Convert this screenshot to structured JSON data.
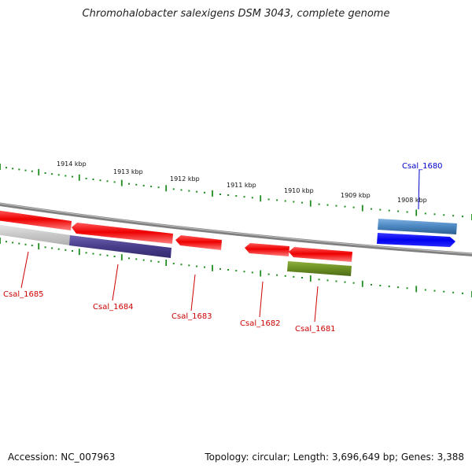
{
  "title": "Chromohalobacter salexigens DSM 3043, complete genome",
  "accession": "Accession: NC_007963",
  "topology": "Topology: circular; Length: 3,696,649 bp; Genes: 3,388",
  "kbp_labels": [
    "1914 kbp",
    "1913 kbp",
    "1912 kbp",
    "1911 kbp",
    "1910 kbp",
    "1909 kbp",
    "1908 kbp"
  ],
  "genes": [
    {
      "label": "Csal_1680",
      "strand": "forward",
      "color": "#0000ee",
      "label_color": "#0000cc",
      "subfeature_color": "#4a86c0"
    },
    {
      "label": "Csal_1681",
      "strand": "reverse",
      "color": "#ee0000",
      "label_color": "#cc0000",
      "subfeature_color": "#6b8e23"
    },
    {
      "label": "Csal_1682",
      "strand": "reverse",
      "color": "#ee0000",
      "label_color": "#cc0000"
    },
    {
      "label": "Csal_1683",
      "strand": "reverse",
      "color": "#ee0000",
      "label_color": "#cc0000"
    },
    {
      "label": "Csal_1684",
      "strand": "reverse",
      "color": "#ee0000",
      "label_color": "#cc0000",
      "subfeature_color": "#483d8b"
    },
    {
      "label": "Csal_1685",
      "strand": "reverse",
      "color": "#ee0000",
      "label_color": "#cc0000",
      "subfeature_color": "#c8c8c8"
    }
  ],
  "colors": {
    "backbone": "#808080",
    "tick": "#1e8c1e",
    "forward_gene": "#0000ee",
    "reverse_gene": "#ee0000"
  }
}
